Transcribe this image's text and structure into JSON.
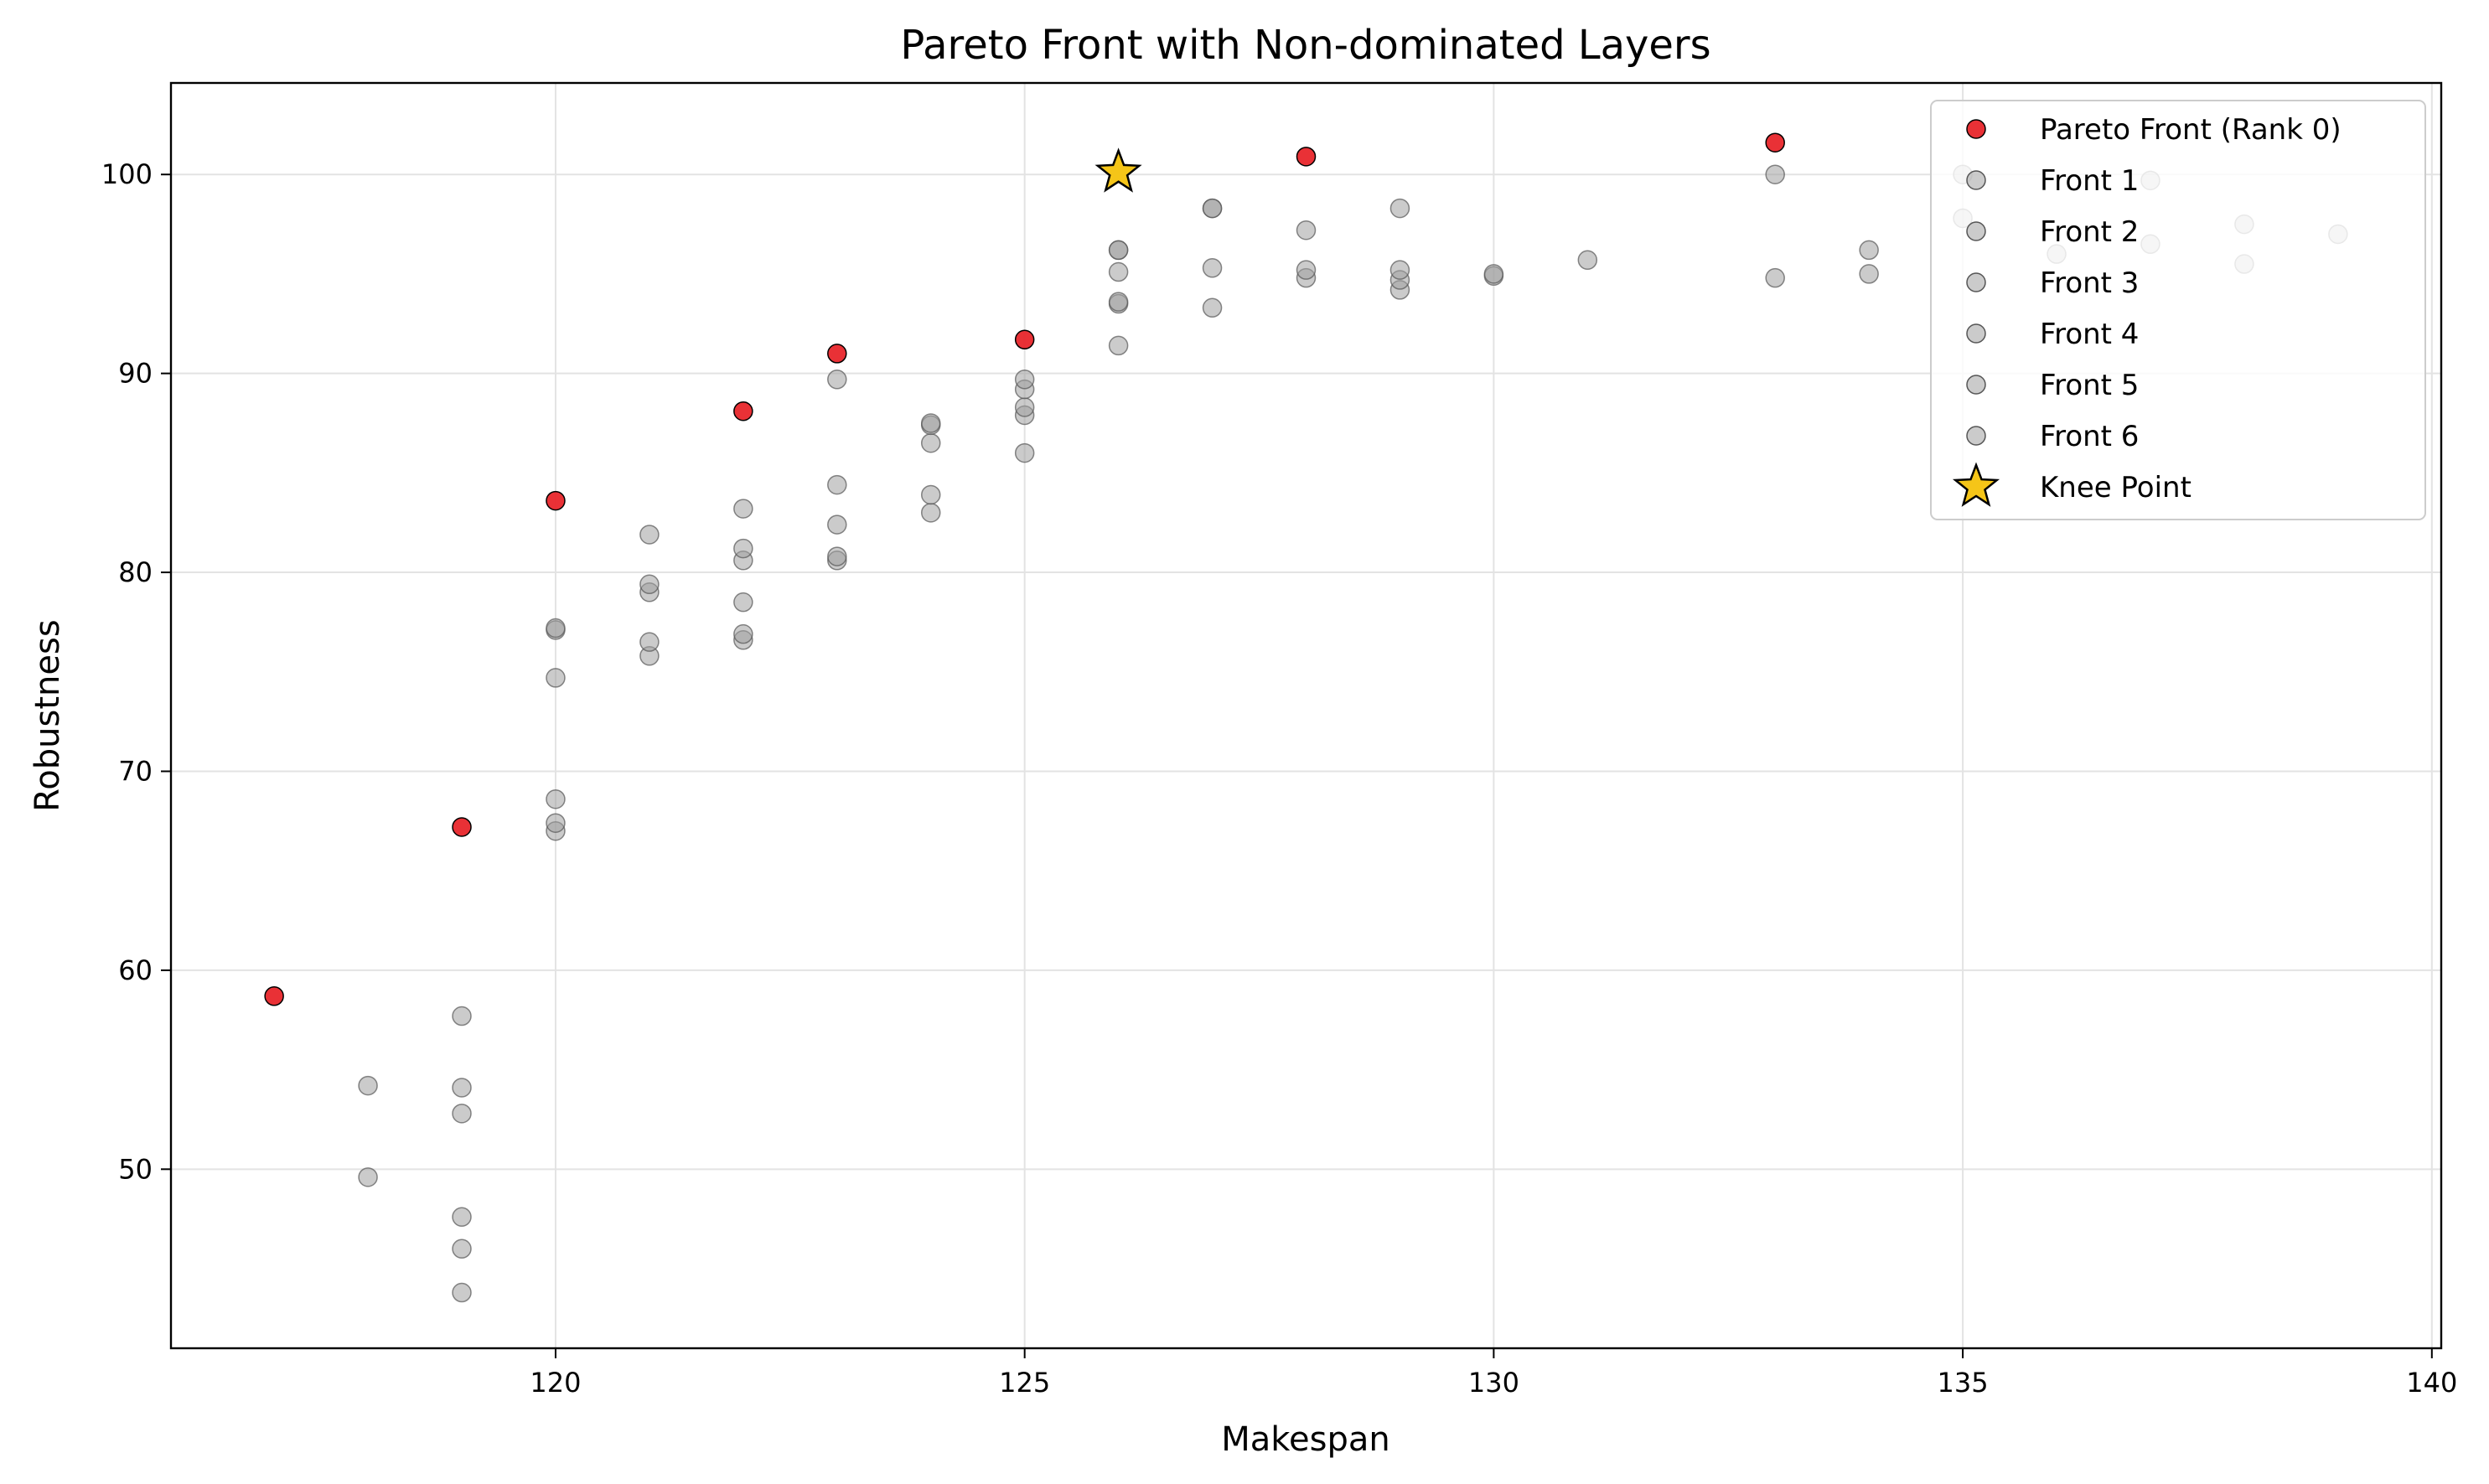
{
  "chart_data": {
    "type": "scatter",
    "title": "Pareto Front with Non-dominated Layers",
    "xlabel": "Makespan",
    "ylabel": "Robustness",
    "xlim": [
      115.9,
      140.1
    ],
    "ylim": [
      41,
      104.6
    ],
    "xticks": [
      120,
      125,
      130,
      135,
      140
    ],
    "yticks": [
      50,
      60,
      70,
      80,
      90,
      100
    ],
    "grid": true,
    "legend_position": "top-right",
    "series": [
      {
        "name": "Pareto Front (Rank 0)",
        "color": "#e8262b",
        "points": [
          [
            117,
            58.7
          ],
          [
            119,
            67.2
          ],
          [
            120,
            83.6
          ],
          [
            122,
            88.1
          ],
          [
            123,
            91.0
          ],
          [
            125,
            91.7
          ],
          [
            128,
            100.9
          ],
          [
            133,
            101.6
          ]
        ]
      },
      {
        "name": "Front 1",
        "color": "#a0a0a0",
        "points": [
          [
            119,
            57.7
          ],
          [
            120,
            77.2
          ],
          [
            121,
            81.9
          ],
          [
            122,
            83.2
          ],
          [
            123,
            89.7
          ],
          [
            124,
            87.5
          ],
          [
            125,
            89.7
          ],
          [
            126,
            96.2
          ],
          [
            127,
            98.3
          ],
          [
            129,
            98.3
          ],
          [
            133,
            100.0
          ]
        ]
      },
      {
        "name": "Front 2",
        "color": "#a0a0a0",
        "points": [
          [
            118,
            54.2
          ],
          [
            119,
            54.1
          ],
          [
            120,
            77.1
          ],
          [
            121,
            79.4
          ],
          [
            122,
            81.2
          ],
          [
            123,
            84.4
          ],
          [
            124,
            87.4
          ],
          [
            125,
            89.2
          ],
          [
            126,
            96.2
          ],
          [
            127,
            98.3
          ],
          [
            128,
            97.2
          ],
          [
            135,
            100.0
          ],
          [
            137,
            99.7
          ]
        ]
      },
      {
        "name": "Front 3",
        "color": "#a0a0a0",
        "points": [
          [
            119,
            52.8
          ],
          [
            120,
            74.7
          ],
          [
            121,
            79.0
          ],
          [
            122,
            80.6
          ],
          [
            123,
            82.4
          ],
          [
            124,
            86.5
          ],
          [
            125,
            88.3
          ],
          [
            126,
            95.1
          ],
          [
            127,
            95.3
          ],
          [
            128,
            95.2
          ],
          [
            129,
            95.2
          ],
          [
            130,
            95.0
          ],
          [
            131,
            95.7
          ],
          [
            134,
            96.2
          ]
        ]
      },
      {
        "name": "Front 4",
        "color": "#a0a0a0",
        "points": [
          [
            118,
            49.6
          ],
          [
            119,
            47.6
          ],
          [
            120,
            68.6
          ],
          [
            121,
            76.5
          ],
          [
            122,
            78.5
          ],
          [
            123,
            80.8
          ],
          [
            124,
            83.9
          ],
          [
            125,
            87.9
          ],
          [
            126,
            93.6
          ],
          [
            128,
            94.8
          ],
          [
            129,
            94.7
          ],
          [
            130,
            94.9
          ],
          [
            133,
            94.8
          ],
          [
            135,
            97.8
          ],
          [
            138,
            97.5
          ]
        ]
      },
      {
        "name": "Front 5",
        "color": "#a0a0a0",
        "points": [
          [
            119,
            46.0
          ],
          [
            120,
            67.4
          ],
          [
            121,
            75.8
          ],
          [
            122,
            76.9
          ],
          [
            123,
            80.6
          ],
          [
            124,
            83.0
          ],
          [
            126,
            93.5
          ],
          [
            127,
            93.3
          ],
          [
            129,
            94.2
          ],
          [
            134,
            95.0
          ],
          [
            136,
            96.0
          ],
          [
            138,
            95.5
          ]
        ]
      },
      {
        "name": "Front 6",
        "color": "#a0a0a0",
        "points": [
          [
            119,
            43.8
          ],
          [
            120,
            67.0
          ],
          [
            122,
            76.6
          ],
          [
            125,
            86.0
          ],
          [
            126,
            91.4
          ],
          [
            137,
            96.5
          ],
          [
            139,
            97.0
          ]
        ]
      }
    ],
    "knee_point": {
      "name": "Knee Point",
      "x": 126,
      "y": 100.1,
      "color": "#f5c518"
    }
  }
}
